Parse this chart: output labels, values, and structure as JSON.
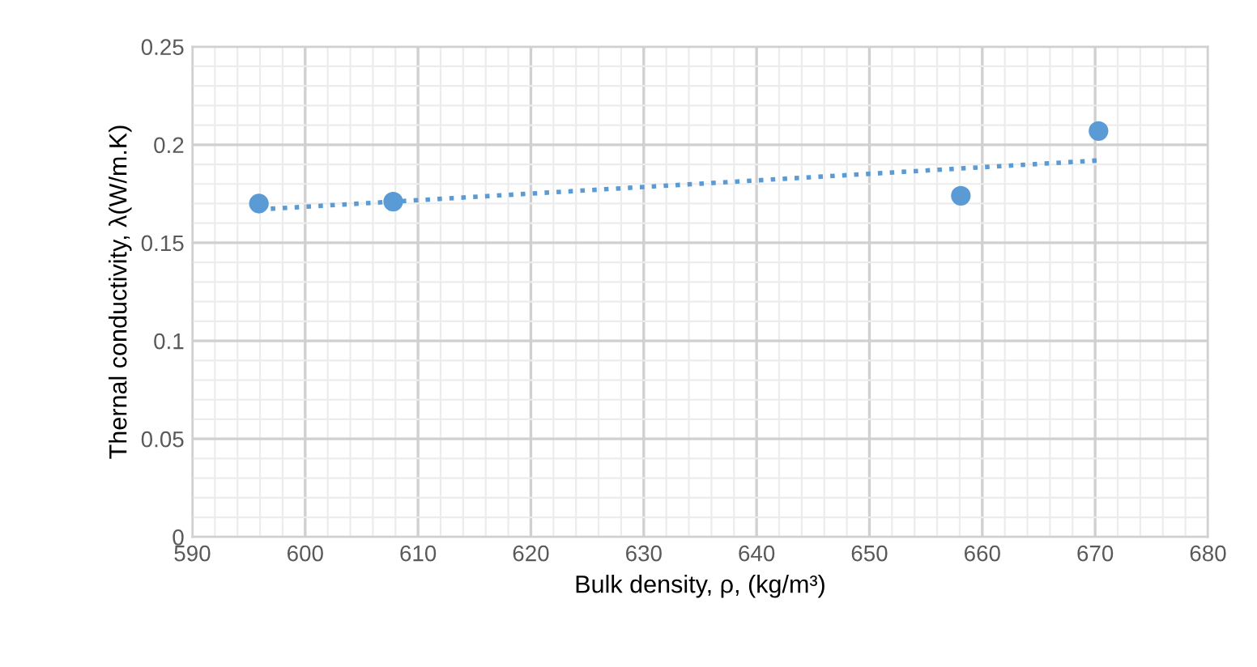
{
  "chart_data": {
    "type": "scatter",
    "xlabel": "Bulk density, ρ, (kg/m³)",
    "ylabel": "Thernal conductivity, λ(W/m.K)",
    "series": [
      {
        "color": "#5b9bd5",
        "x": [
          595.9,
          607.8,
          658.1,
          670.3
        ],
        "values": [
          0.17,
          0.171,
          0.174,
          0.207
        ],
        "marker": "circle"
      },
      {
        "type": "line",
        "color": "#5b9bd5",
        "x": [
          595.9,
          670.3
        ],
        "values": [
          0.167,
          0.192
        ],
        "line_style": "dotted",
        "marker": "none"
      }
    ],
    "xlim": [
      590,
      680
    ],
    "xticks": [
      590,
      600,
      610,
      620,
      630,
      640,
      650,
      660,
      670,
      680
    ],
    "ylim": [
      0,
      0.25
    ],
    "yticks": [
      {
        "value": 0,
        "label": "0"
      },
      0.05,
      0.1,
      0.15,
      0.2,
      0.25
    ],
    "grid": true,
    "legend": false
  }
}
